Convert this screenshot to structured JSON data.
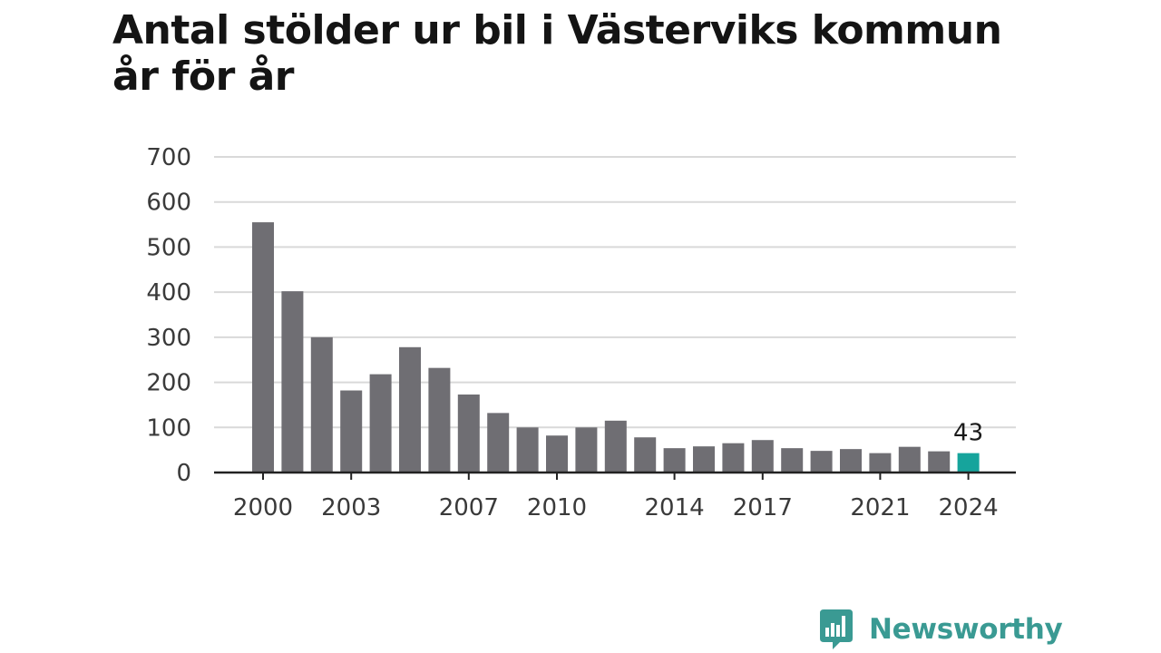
{
  "chart_data": {
    "type": "bar",
    "title": "Antal stölder ur bil i Västerviks kommun år för år",
    "xlabel": "",
    "ylabel": "",
    "ylim": [
      0,
      700
    ],
    "yticks": [
      "0",
      "100",
      "200",
      "300",
      "400",
      "500",
      "600",
      "700"
    ],
    "grid": true,
    "categories": [
      "2000",
      "2001",
      "2002",
      "2003",
      "2004",
      "2005",
      "2006",
      "2007",
      "2008",
      "2009",
      "2010",
      "2011",
      "2012",
      "2013",
      "2014",
      "2015",
      "2016",
      "2017",
      "2018",
      "2019",
      "2020",
      "2021",
      "2022",
      "2023",
      "2024"
    ],
    "xtick_labels": [
      "2000",
      "2003",
      "2007",
      "2010",
      "2014",
      "2017",
      "2021",
      "2024"
    ],
    "values": [
      555,
      402,
      300,
      182,
      218,
      278,
      232,
      173,
      132,
      100,
      82,
      100,
      115,
      78,
      54,
      58,
      65,
      72,
      54,
      48,
      52,
      43,
      57,
      47,
      43
    ],
    "highlight": {
      "category": "2024",
      "label": "43"
    },
    "colors": {
      "bar": "#6f6e73",
      "highlight": "#16a49c",
      "grid": "#d9d9d9",
      "axis": "#222222"
    }
  },
  "branding": {
    "logo_text": "Newsworthy",
    "logo_icon": "bar-chart-speech-bubble-icon",
    "logo_color": "#3a9a93"
  }
}
